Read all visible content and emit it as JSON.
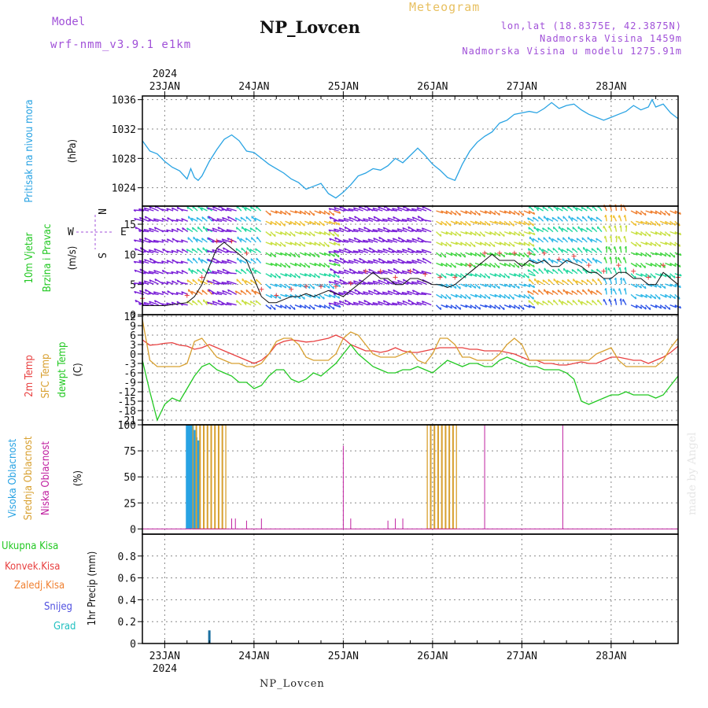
{
  "header": {
    "model_label": "Model",
    "model_name": "wrf-nmm_v3.9.1 e1km",
    "station": "NP_Lovcen",
    "product": "Meteogram",
    "location": "lon,lat (18.8375E, 42.3875N)",
    "elevation": "Nadmorska Visina 1459m",
    "model_elevation": "Nadmorska Visina u modelu 1275.91m"
  },
  "footer": {
    "station": "NP_Lovcen",
    "credit": "made by Angel"
  },
  "time_axis": {
    "year": "2024",
    "days": [
      "23JAN",
      "24JAN",
      "25JAN",
      "26JAN",
      "27JAN",
      "28JAN"
    ],
    "range_hours": [
      -6,
      138
    ]
  },
  "colors": {
    "pressure": "#29a3e3",
    "temp2m": "#e84040",
    "tsfc": "#d8a030",
    "dewpt": "#22c822",
    "high_cloud": "#29a3e3",
    "mid_cloud": "#d8a030",
    "low_cloud": "#c020a0",
    "precip": "#1a6fa0"
  },
  "chart_data": [
    {
      "type": "line",
      "title": "",
      "ylabel": [
        "Pritisak na nivou mora",
        "(hPa)"
      ],
      "ylim": [
        1021.5,
        1036.5
      ],
      "yticks": [
        "1024",
        "1028",
        "1032",
        "1036"
      ],
      "series": [
        {
          "name": "Pritisak na nivou mora",
          "x": [
            -6,
            -4,
            -2,
            0,
            2,
            4,
            6,
            7,
            8,
            9,
            10,
            12,
            14,
            16,
            18,
            20,
            22,
            24,
            26,
            28,
            30,
            32,
            34,
            36,
            38,
            40,
            42,
            44,
            46,
            48,
            50,
            52,
            54,
            56,
            58,
            60,
            62,
            64,
            66,
            68,
            70,
            72,
            74,
            76,
            78,
            80,
            82,
            84,
            86,
            88,
            90,
            92,
            94,
            96,
            98,
            100,
            102,
            104,
            106,
            108,
            110,
            112,
            114,
            116,
            118,
            120,
            122,
            124,
            126,
            128,
            130,
            131,
            132,
            134,
            136,
            138
          ],
          "values": [
            1030.4,
            1029,
            1028.6,
            1027.6,
            1026.8,
            1026.3,
            1025.2,
            1026.6,
            1025.4,
            1025,
            1025.6,
            1027.6,
            1029.2,
            1030.6,
            1031.2,
            1030.4,
            1029,
            1028.8,
            1028,
            1027.2,
            1026.6,
            1026,
            1025.2,
            1024.7,
            1023.8,
            1024.2,
            1024.6,
            1023.2,
            1022.6,
            1023.4,
            1024.4,
            1025.6,
            1026,
            1026.6,
            1026.4,
            1027,
            1028,
            1027.4,
            1028.4,
            1029.4,
            1028.4,
            1027.2,
            1026.4,
            1025.4,
            1025,
            1027.2,
            1029,
            1030.2,
            1031,
            1031.6,
            1032.8,
            1033.2,
            1034,
            1034.2,
            1034.4,
            1034.2,
            1034.8,
            1035.6,
            1034.8,
            1035.2,
            1035.4,
            1034.6,
            1034,
            1033.6,
            1033.2,
            1033.6,
            1034,
            1034.4,
            1035.2,
            1034.6,
            1035,
            1036,
            1035,
            1035.4,
            1034.2,
            1033.4
          ]
        }
      ]
    },
    {
      "type": "line",
      "ylabel": [
        "10m Vjetar",
        "Brzina i Pravac",
        "(m/s)"
      ],
      "ylim": [
        0,
        18
      ],
      "yticks": [
        "0",
        "5",
        "10",
        "15"
      ],
      "compass": {
        "n": "N",
        "s": "S",
        "e": "E",
        "w": "W"
      },
      "series": [
        {
          "name": "Brzina",
          "x": [
            -6,
            0,
            6,
            8,
            10,
            12,
            14,
            16,
            18,
            20,
            22,
            24,
            26,
            28,
            30,
            32,
            34,
            36,
            38,
            40,
            42,
            44,
            46,
            48,
            50,
            52,
            54,
            56,
            58,
            60,
            62,
            64,
            66,
            68,
            70,
            72,
            74,
            76,
            78,
            80,
            82,
            84,
            86,
            88,
            90,
            92,
            94,
            96,
            98,
            100,
            102,
            104,
            106,
            108,
            110,
            112,
            114,
            116,
            118,
            120,
            122,
            124,
            126,
            128,
            130,
            132,
            134,
            136,
            138
          ],
          "values": [
            1.5,
            1.5,
            2,
            3,
            5,
            8,
            11,
            12,
            11,
            10,
            9,
            6,
            3,
            2,
            2,
            2.5,
            3,
            3,
            3.5,
            3,
            3.5,
            4,
            3.5,
            3,
            4,
            5,
            6,
            7,
            6,
            6,
            5,
            5,
            6,
            6,
            5.5,
            5,
            5,
            4.5,
            5,
            6,
            7,
            8,
            9,
            10,
            9,
            9,
            9,
            8,
            9,
            8.5,
            9,
            8,
            8,
            9,
            8.5,
            8,
            7,
            7,
            6,
            6,
            7,
            7,
            6,
            6,
            5,
            5,
            7,
            6,
            5
          ]
        }
      ],
      "barbs_direction": [
        "W",
        "WSW",
        "SW",
        "W",
        "SW",
        "NE",
        "NE",
        "NE",
        "W",
        "W",
        "W",
        "W",
        "NE",
        "NE",
        "NE",
        "NE",
        "SW",
        "SW",
        "SW",
        "S",
        "NE",
        "NE"
      ]
    },
    {
      "type": "line",
      "ylabel": [
        "2m Temp",
        "SFC Temp",
        "dewpt Temp",
        "(C)"
      ],
      "ylim": [
        -22.5,
        12.5
      ],
      "yticks": [
        "12",
        "9",
        "6",
        "3",
        "0",
        "-3",
        "-6",
        "-9",
        "-12",
        "-15",
        "-18",
        "-21"
      ],
      "x": [
        -6,
        -4,
        -2,
        0,
        2,
        4,
        6,
        8,
        10,
        12,
        14,
        16,
        18,
        20,
        22,
        24,
        26,
        28,
        30,
        32,
        34,
        36,
        38,
        40,
        42,
        44,
        46,
        48,
        50,
        52,
        54,
        56,
        58,
        60,
        62,
        64,
        66,
        68,
        70,
        72,
        74,
        76,
        78,
        80,
        82,
        84,
        86,
        88,
        90,
        92,
        94,
        96,
        98,
        100,
        102,
        104,
        106,
        108,
        110,
        112,
        114,
        116,
        118,
        120,
        122,
        124,
        126,
        128,
        130,
        132,
        134,
        136,
        138
      ],
      "series": [
        {
          "name": "2m Temp",
          "values": [
            4.5,
            2.8,
            3,
            3.4,
            3.6,
            2.8,
            2.5,
            1.5,
            2,
            3,
            2,
            1,
            0,
            -1,
            -2,
            -3,
            -2,
            0,
            3,
            4,
            4.5,
            4.2,
            3.8,
            4,
            4.5,
            5,
            6,
            5,
            3,
            2,
            1,
            1,
            0.5,
            1,
            2,
            1,
            0.5,
            0.5,
            1,
            1.5,
            2,
            2,
            2,
            2,
            1.5,
            1.5,
            1,
            1,
            1,
            0.5,
            0,
            -1,
            -2,
            -2,
            -3,
            -3,
            -3.5,
            -3.5,
            -3,
            -2.5,
            -3,
            -3,
            -2,
            -1,
            -1,
            -1.5,
            -2,
            -2,
            -3,
            -2,
            -1,
            0.5,
            2.5
          ]
        },
        {
          "name": "SFC Temp",
          "values": [
            11,
            -2,
            -4,
            -4,
            -4,
            -4,
            -3,
            4,
            5,
            2,
            -1,
            -2,
            -3,
            -3,
            -4,
            -4,
            -3,
            0,
            4,
            5,
            5,
            3,
            -1,
            -2,
            -2,
            -2,
            0,
            5,
            7,
            6,
            3,
            0,
            -1,
            -1,
            -1,
            0,
            1,
            -2,
            -3,
            0,
            5,
            5,
            3,
            -1,
            -1,
            -2,
            -2,
            -2,
            0,
            3,
            5,
            3,
            -2,
            -2,
            -2,
            -2,
            -2,
            -2,
            -2,
            -2,
            -2,
            0,
            1,
            2,
            -2,
            -4,
            -4,
            -4,
            -4,
            -4,
            -2,
            2,
            5
          ]
        },
        {
          "name": "dewpt Temp",
          "values": [
            -2,
            -12,
            -21,
            -16,
            -14,
            -15,
            -11,
            -7,
            -4,
            -3,
            -5,
            -6,
            -7,
            -9,
            -9,
            -11,
            -10,
            -7,
            -5,
            -5,
            -8,
            -9,
            -8,
            -6,
            -7,
            -5,
            -3,
            0,
            3,
            0,
            -2,
            -4,
            -5,
            -6,
            -6,
            -5,
            -5,
            -4,
            -5,
            -6,
            -4,
            -2,
            -3,
            -4,
            -3,
            -3,
            -4,
            -4,
            -2,
            -1,
            -2,
            -3,
            -4,
            -4,
            -5,
            -5,
            -5,
            -6,
            -8,
            -15,
            -16,
            -15,
            -14,
            -13,
            -13,
            -12,
            -13,
            -13,
            -13,
            -14,
            -13,
            -10,
            -7
          ]
        }
      ]
    },
    {
      "type": "bar",
      "ylabel": [
        "Visoka Oblacnost",
        "Srednja Oblacnost",
        "Niska Oblacnost",
        "(%)"
      ],
      "ylim": [
        -5,
        100
      ],
      "yticks": [
        "0",
        "25",
        "50",
        "75",
        "100"
      ],
      "series": [
        {
          "name": "Visoka Oblacnost",
          "x": [
            6,
            6.5,
            7,
            7.5,
            8,
            8.5,
            9
          ],
          "values": [
            100,
            100,
            100,
            100,
            95,
            88,
            85
          ]
        },
        {
          "name": "Srednja Oblacnost",
          "x": [
            8,
            9,
            10,
            11,
            12,
            13,
            14,
            15,
            16,
            71,
            72,
            73,
            74,
            75,
            76,
            77,
            78
          ],
          "values": [
            100,
            100,
            100,
            100,
            100,
            100,
            100,
            100,
            100,
            100,
            100,
            100,
            100,
            100,
            100,
            100,
            100
          ]
        },
        {
          "name": "Niska Oblacnost",
          "x": [
            18,
            19,
            22,
            26,
            48,
            50,
            60,
            62,
            64,
            86,
            107,
            138
          ],
          "values": [
            10,
            10,
            8,
            10,
            80,
            10,
            8,
            10,
            10,
            100,
            100,
            10
          ]
        }
      ]
    },
    {
      "type": "bar",
      "ylabel": [
        "1hr Precip (mm)"
      ],
      "ylim": [
        0,
        1
      ],
      "yticks": [
        "0",
        "0.2",
        "0.4",
        "0.6",
        "0.8"
      ],
      "legend": [
        "Ukupna Kisa",
        "Konvek.Kisa",
        "Zaledj.Kisa",
        "Snijeg",
        "Grad"
      ],
      "legend_colors": [
        "#22c822",
        "#e84040",
        "#f08030",
        "#5050e0",
        "#20c0c0"
      ],
      "series": [
        {
          "name": "Ukupna Kisa",
          "x": [
            12
          ],
          "values": [
            0.12
          ]
        }
      ]
    }
  ]
}
